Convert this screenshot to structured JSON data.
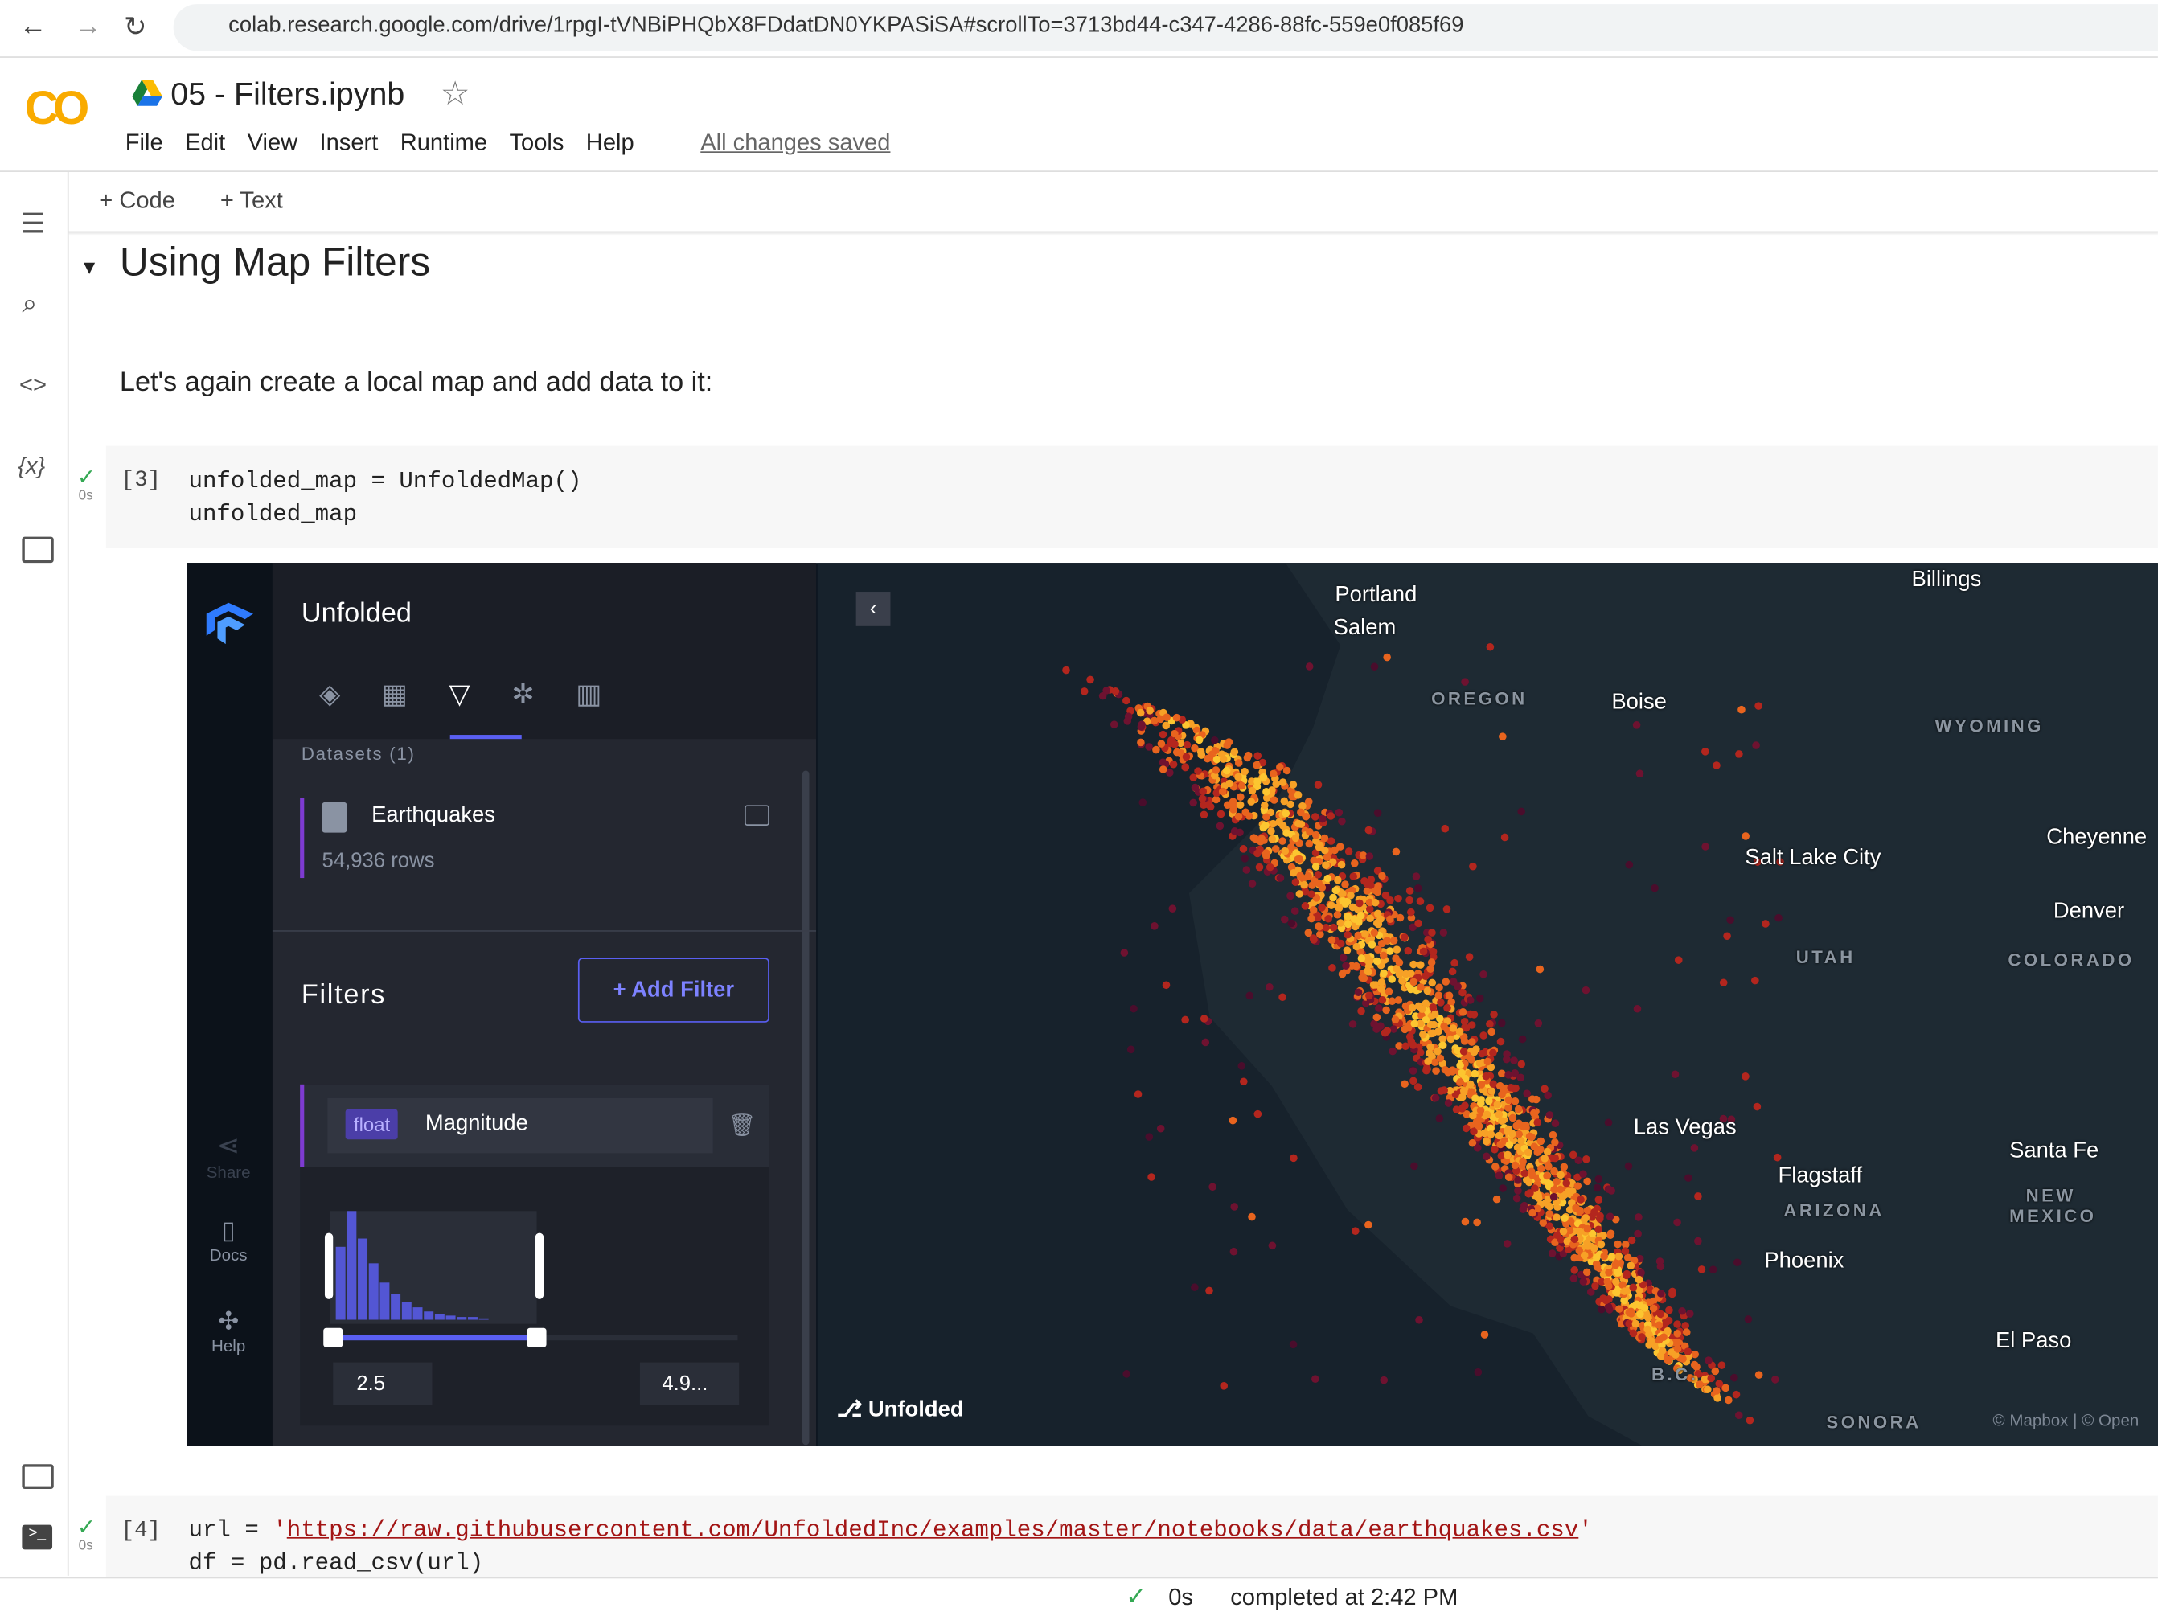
{
  "browser": {
    "url": "colab.research.google.com/drive/1rpgI-tVNBiPHQbX8FDdatDN0YKPASiSA#scrollTo=3713bd44-c347-4286-88fc-559e0f085f69"
  },
  "header": {
    "logo": "CO",
    "notebook_title": "05 - Filters.ipynb",
    "menu": [
      "File",
      "Edit",
      "View",
      "Insert",
      "Runtime",
      "Tools",
      "Help"
    ],
    "save_status": "All changes saved"
  },
  "toolbar": {
    "add_code": "Code",
    "add_text": "Text"
  },
  "notebook": {
    "heading": "Using Map Filters",
    "paragraph": "Let's again create a local map and add data to it:",
    "cells": [
      {
        "prompt": "[3]",
        "time": "0s",
        "lines": [
          "unfolded_map = UnfoldedMap()",
          "unfolded_map"
        ]
      },
      {
        "prompt": "[4]",
        "time": "0s",
        "code_prefix": "url = ",
        "quote": "'",
        "url": "https://raw.githubusercontent.com/UnfoldedInc/examples/master/notebooks/data/earthquakes.csv",
        "line2": "df = pd.read_csv(url)"
      }
    ]
  },
  "map_widget": {
    "brand": "Unfolded",
    "datasets_label": "Datasets (1)",
    "dataset_name": "Earthquakes",
    "dataset_rows": "54,936 rows",
    "filters_title": "Filters",
    "add_filter": "Add Filter",
    "filter_type": "float",
    "filter_field": "Magnitude",
    "range_min": "2.5",
    "range_max": "4.9...",
    "side_nav": [
      "Share",
      "Docs",
      "Help"
    ],
    "map_logo": "Unfolded",
    "attribution": "© Mapbox | © Open",
    "places": [
      "Portland",
      "Salem",
      "OREGON",
      "Boise",
      "Billings",
      "WYOMING",
      "Salt Lake City",
      "Cheyenne",
      "Denver",
      "COLORADO",
      "UTAH",
      "Las Vegas",
      "Flagstaff",
      "ARIZONA",
      "Phoenix",
      "Santa Fe",
      "NEW",
      "MEXICO",
      "El Paso",
      "B.C.",
      "SONORA"
    ]
  },
  "status": {
    "time": "0s",
    "message": "completed at 2:42 PM"
  }
}
